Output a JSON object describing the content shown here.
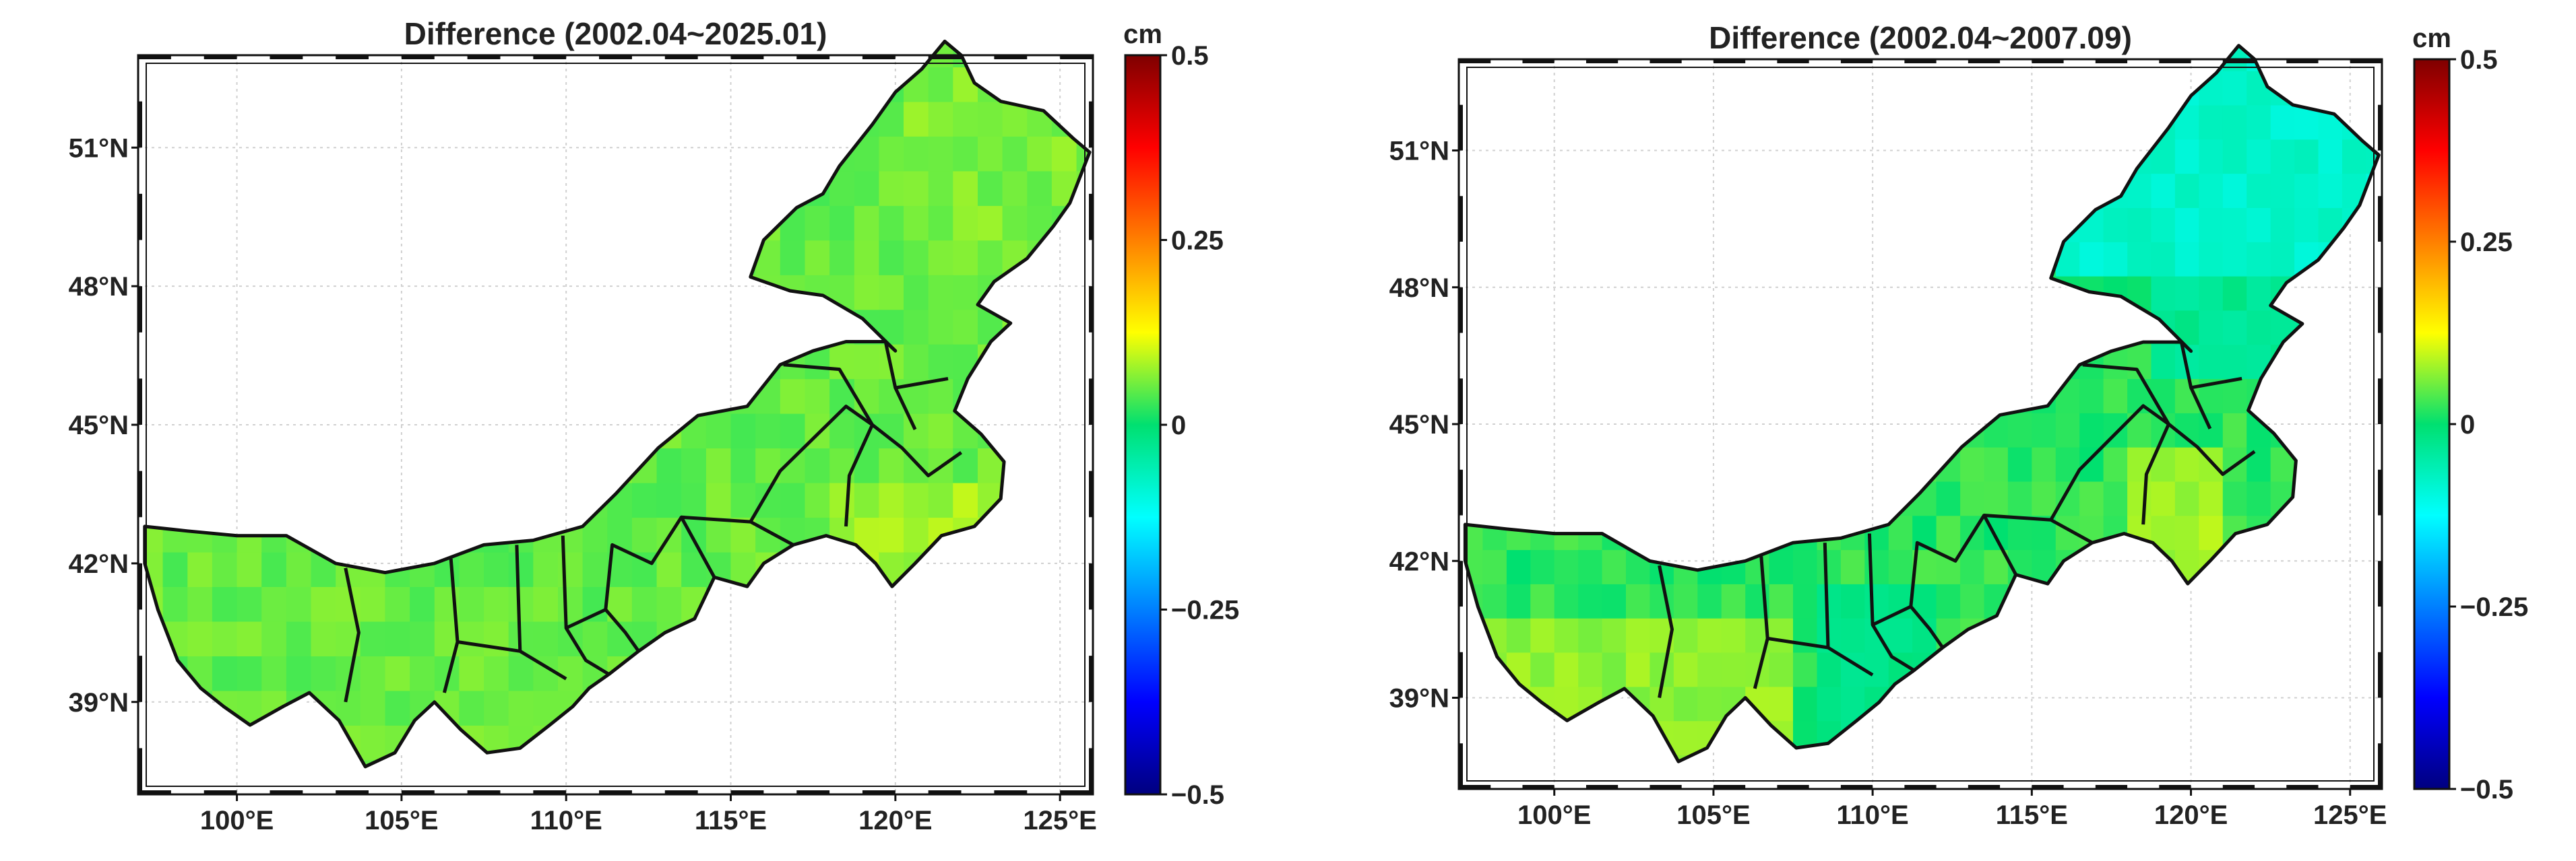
{
  "panels": [
    {
      "id": "left",
      "title": "Difference (2002.04~2025.01)",
      "lon_labels": [
        "100°E",
        "105°E",
        "110°E",
        "115°E",
        "120°E",
        "125°E"
      ],
      "lat_labels": [
        "51°N",
        "48°N",
        "45°N",
        "42°N",
        "39°N"
      ],
      "colorbar": {
        "unit": "cm",
        "ticks": [
          "0.5",
          "0.25",
          "0",
          "−0.25",
          "−0.5"
        ]
      },
      "field_pattern": "uniform-green",
      "field_value_approx_cm": 0.05
    },
    {
      "id": "right",
      "title": "Difference (2002.04~2007.09)",
      "lon_labels": [
        "100°E",
        "105°E",
        "110°E",
        "115°E",
        "120°E",
        "125°E"
      ],
      "lat_labels": [
        "51°N",
        "48°N",
        "45°N",
        "42°N",
        "39°N"
      ],
      "colorbar": {
        "unit": "cm",
        "ticks": [
          "0.5",
          "0.25",
          "0",
          "−0.25",
          "−0.5"
        ]
      },
      "field_pattern": "cyan-northeast-green-yellow-south",
      "field_value_approx_cm": 0.02
    }
  ],
  "colormap": [
    "#00007f",
    "#0000ff",
    "#00ffff",
    "#00e070",
    "#ffff00",
    "#ff0000",
    "#7f0000"
  ],
  "cbar_range": [
    -0.5,
    0.5
  ],
  "map_extent": {
    "lon": [
      97,
      126
    ],
    "lat": [
      37,
      53
    ]
  }
}
